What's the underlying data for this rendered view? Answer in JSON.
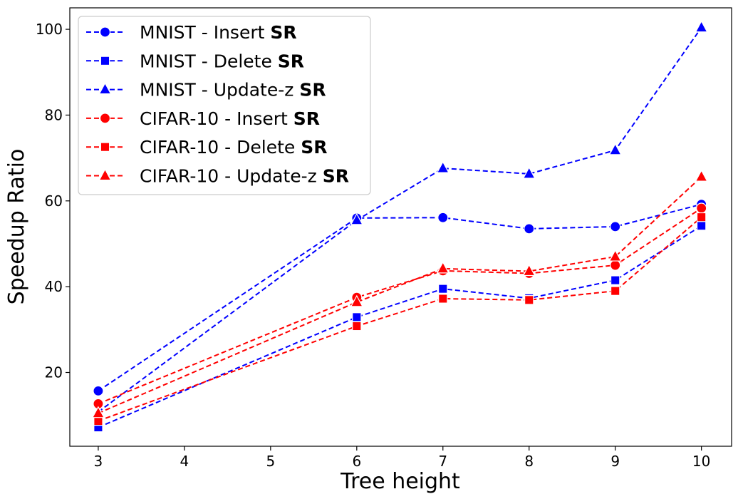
{
  "chart_data": {
    "type": "line",
    "xlabel": "Tree height",
    "ylabel": "Speedup Ratio",
    "x": [
      3,
      6,
      7,
      8,
      9,
      10
    ],
    "xticks": [
      3,
      4,
      5,
      6,
      7,
      8,
      9,
      10
    ],
    "yticks": [
      20,
      40,
      60,
      80,
      100
    ],
    "xlim": [
      2.67,
      10.35
    ],
    "ylim": [
      2.8,
      105
    ],
    "grid": false,
    "legend_position": "top-left",
    "series": [
      {
        "name": "MNIST - Insert",
        "name_suffix": "SR",
        "color": "#0000ff",
        "marker": "circle",
        "values": [
          15.7,
          56.0,
          56.1,
          53.5,
          54.0,
          59.2
        ]
      },
      {
        "name": "MNIST - Delete",
        "name_suffix": "SR",
        "color": "#0000ff",
        "marker": "square",
        "values": [
          7.2,
          32.9,
          39.5,
          37.3,
          41.5,
          54.2
        ]
      },
      {
        "name": "MNIST - Update-z",
        "name_suffix": "SR",
        "color": "#0000ff",
        "marker": "triangle",
        "values": [
          10.8,
          55.5,
          67.6,
          66.3,
          71.8,
          100.4
        ]
      },
      {
        "name": "CIFAR-10 - Insert",
        "name_suffix": "SR",
        "color": "#ff0000",
        "marker": "circle",
        "values": [
          12.7,
          37.5,
          43.7,
          43.1,
          45.0,
          58.3
        ]
      },
      {
        "name": "CIFAR-10 - Delete",
        "name_suffix": "SR",
        "color": "#ff0000",
        "marker": "square",
        "values": [
          8.7,
          30.8,
          37.2,
          36.9,
          39.0,
          56.2
        ]
      },
      {
        "name": "CIFAR-10 - Update-z",
        "name_suffix": "SR",
        "color": "#ff0000",
        "marker": "triangle",
        "values": [
          10.5,
          36.4,
          44.2,
          43.6,
          47.0,
          65.6
        ]
      }
    ]
  }
}
